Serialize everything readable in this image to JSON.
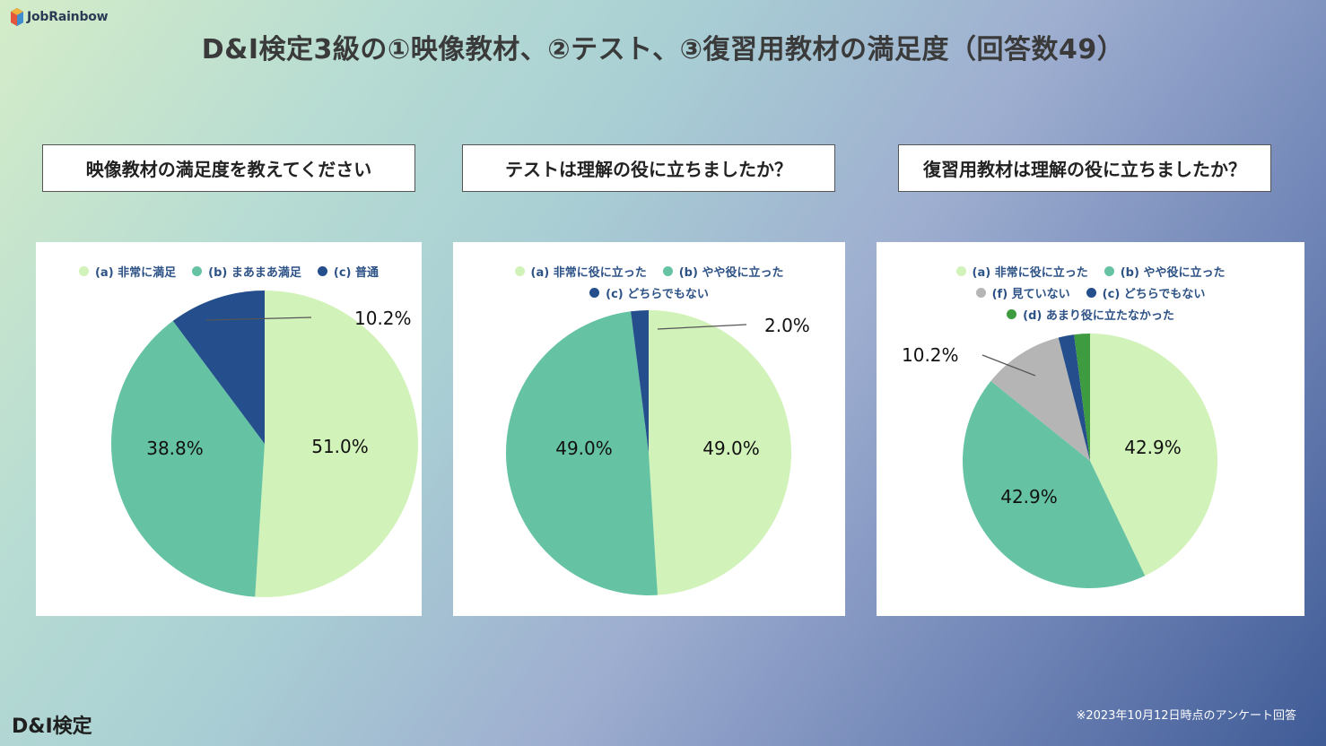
{
  "header": {
    "logo_text": "JobRainbow",
    "title": "D&I検定3級の①映像教材、②テスト、③復習用教材の満足度（回答数49）"
  },
  "footer": {
    "brand": "D&I検定",
    "note": "※2023年10月12日時点のアンケート回答"
  },
  "colors": {
    "light_green": "#d1f2b8",
    "teal": "#65c3a3",
    "navy": "#244f8c",
    "gray": "#b5b5b5",
    "green": "#3f9b3f"
  },
  "chart_data": [
    {
      "type": "pie",
      "title": "映像教材の満足度を教えてください",
      "categories": [
        "(a) 非常に満足",
        "(b) まあまあ満足",
        "(c) 普通"
      ],
      "values": [
        51.0,
        38.8,
        10.2
      ],
      "labels": [
        "51.0%",
        "38.8%",
        "10.2%"
      ],
      "colors": [
        "#d1f2b8",
        "#65c3a3",
        "#244f8c"
      ]
    },
    {
      "type": "pie",
      "title": "テストは理解の役に立ちましたか？",
      "categories": [
        "(a) 非常に役に立った",
        "(b) やや役に立った",
        "(c) どちらでもない"
      ],
      "values": [
        49.0,
        49.0,
        2.0
      ],
      "labels": [
        "49.0%",
        "49.0%",
        "2.0%"
      ],
      "colors": [
        "#d1f2b8",
        "#65c3a3",
        "#244f8c"
      ]
    },
    {
      "type": "pie",
      "title": "復習用教材は理解の役に立ちましたか？",
      "categories": [
        "(a) 非常に役に立った",
        "(b) やや役に立った",
        "(f) 見ていない",
        "(c) どちらでもない",
        "(d) あまり役に立たなかった"
      ],
      "values": [
        42.9,
        42.9,
        10.2,
        2.0,
        2.0
      ],
      "labels": [
        "42.9%",
        "42.9%",
        "10.2%",
        "",
        ""
      ],
      "colors": [
        "#d1f2b8",
        "#65c3a3",
        "#b5b5b5",
        "#244f8c",
        "#3f9b3f"
      ]
    }
  ]
}
